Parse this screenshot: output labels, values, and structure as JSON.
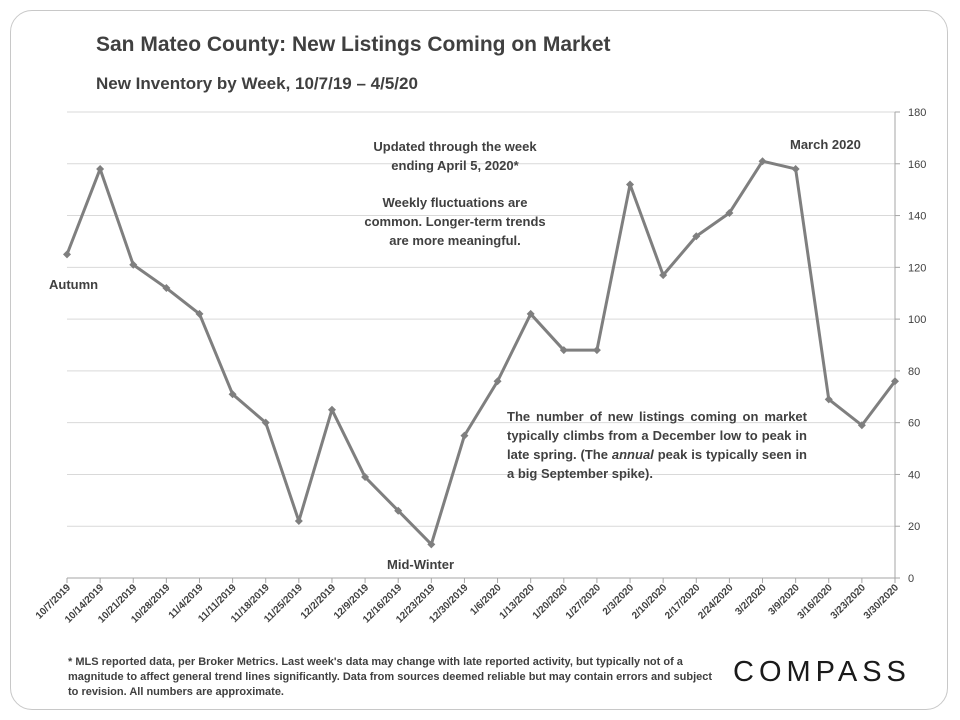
{
  "header": {
    "title": "San Mateo County: New Listings Coming on Market",
    "subtitle": "New Inventory by Week, 10/7/19 – 4/5/20"
  },
  "annotations": {
    "updated_line1": "Updated through the week",
    "updated_line2": "ending April 5, 2020*",
    "fluct_line1": "Weekly fluctuations are",
    "fluct_line2": "common. Longer-term trends",
    "fluct_line3": "are more meaningful.",
    "spring_pre": "The number of new listings coming on market typically climbs from a December low to peak in late spring. (The ",
    "spring_em": "annual",
    "spring_post": " peak is typically seen in a big September spike).",
    "autumn": "Autumn",
    "midwinter": "Mid-Winter",
    "march": "March 2020"
  },
  "footnote": "* MLS reported data, per Broker Metrics. Last week's data may change with late reported activity, but typically not of a magnitude to affect general trend lines significantly. Data from sources deemed reliable but may contain errors and subject to revision. All numbers are approximate.",
  "logo": "COMPASS",
  "colors": {
    "line": "#7f7f7f",
    "marker": "#7f7f7f",
    "grid": "#d9d9d9",
    "text": "#404040"
  },
  "chart_data": {
    "type": "line",
    "categories": [
      "10/7/2019",
      "10/14/2019",
      "10/21/2019",
      "10/28/2019",
      "11/4/2019",
      "11/11/2019",
      "11/18/2019",
      "11/25/2019",
      "12/2/2019",
      "12/9/2019",
      "12/16/2019",
      "12/23/2019",
      "12/30/2019",
      "1/6/2020",
      "1/13/2020",
      "1/20/2020",
      "1/27/2020",
      "2/3/2020",
      "2/10/2020",
      "2/17/2020",
      "2/24/2020",
      "3/2/2020",
      "3/9/2020",
      "3/16/2020",
      "3/23/2020",
      "3/30/2020"
    ],
    "series": [
      {
        "values": [
          125,
          158,
          121,
          112,
          102,
          71,
          60,
          22,
          65,
          39,
          26,
          13,
          55,
          76,
          102,
          88,
          88,
          152,
          117,
          132,
          141,
          161,
          158,
          69,
          59,
          76
        ]
      }
    ],
    "ylim": [
      0,
      180
    ],
    "yticks": [
      0,
      20,
      40,
      60,
      80,
      100,
      120,
      140,
      160,
      180
    ],
    "y_axis_side": "right",
    "grid": true,
    "legend": "none",
    "marker": "diamond"
  }
}
